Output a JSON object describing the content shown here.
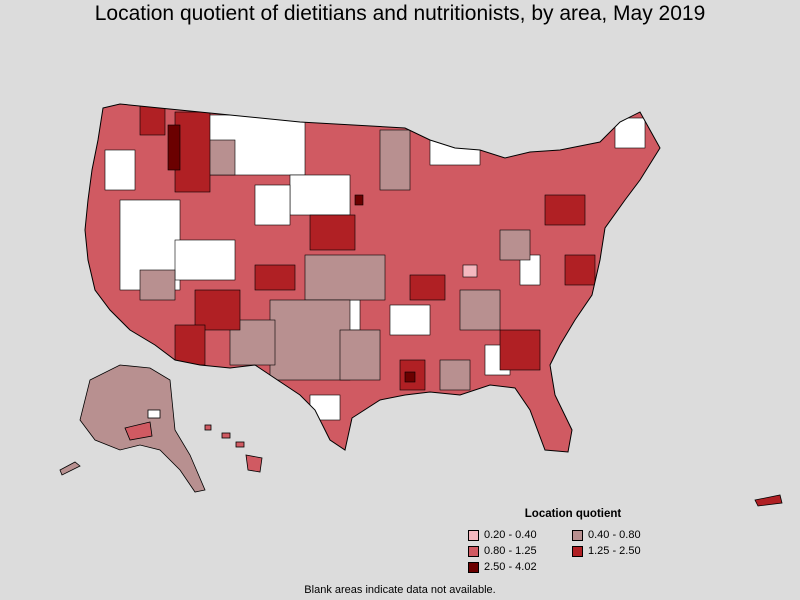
{
  "title": "Location quotient of dietitians and nutritionists, by area, May 2019",
  "legend": {
    "title": "Location quotient",
    "items": [
      {
        "label": "0.20 - 0.40",
        "color": "#f4b8bf"
      },
      {
        "label": "0.40 - 0.80",
        "color": "#b89090"
      },
      {
        "label": "0.80 - 1.25",
        "color": "#d05a62"
      },
      {
        "label": "1.25 - 2.50",
        "color": "#b02024"
      },
      {
        "label": "2.50 - 4.02",
        "color": "#6b0000"
      }
    ]
  },
  "footnote": "Blank areas indicate data not available.",
  "colors": {
    "background": "#dcdcdc",
    "no_data": "#ffffff",
    "border": "#000000"
  }
}
